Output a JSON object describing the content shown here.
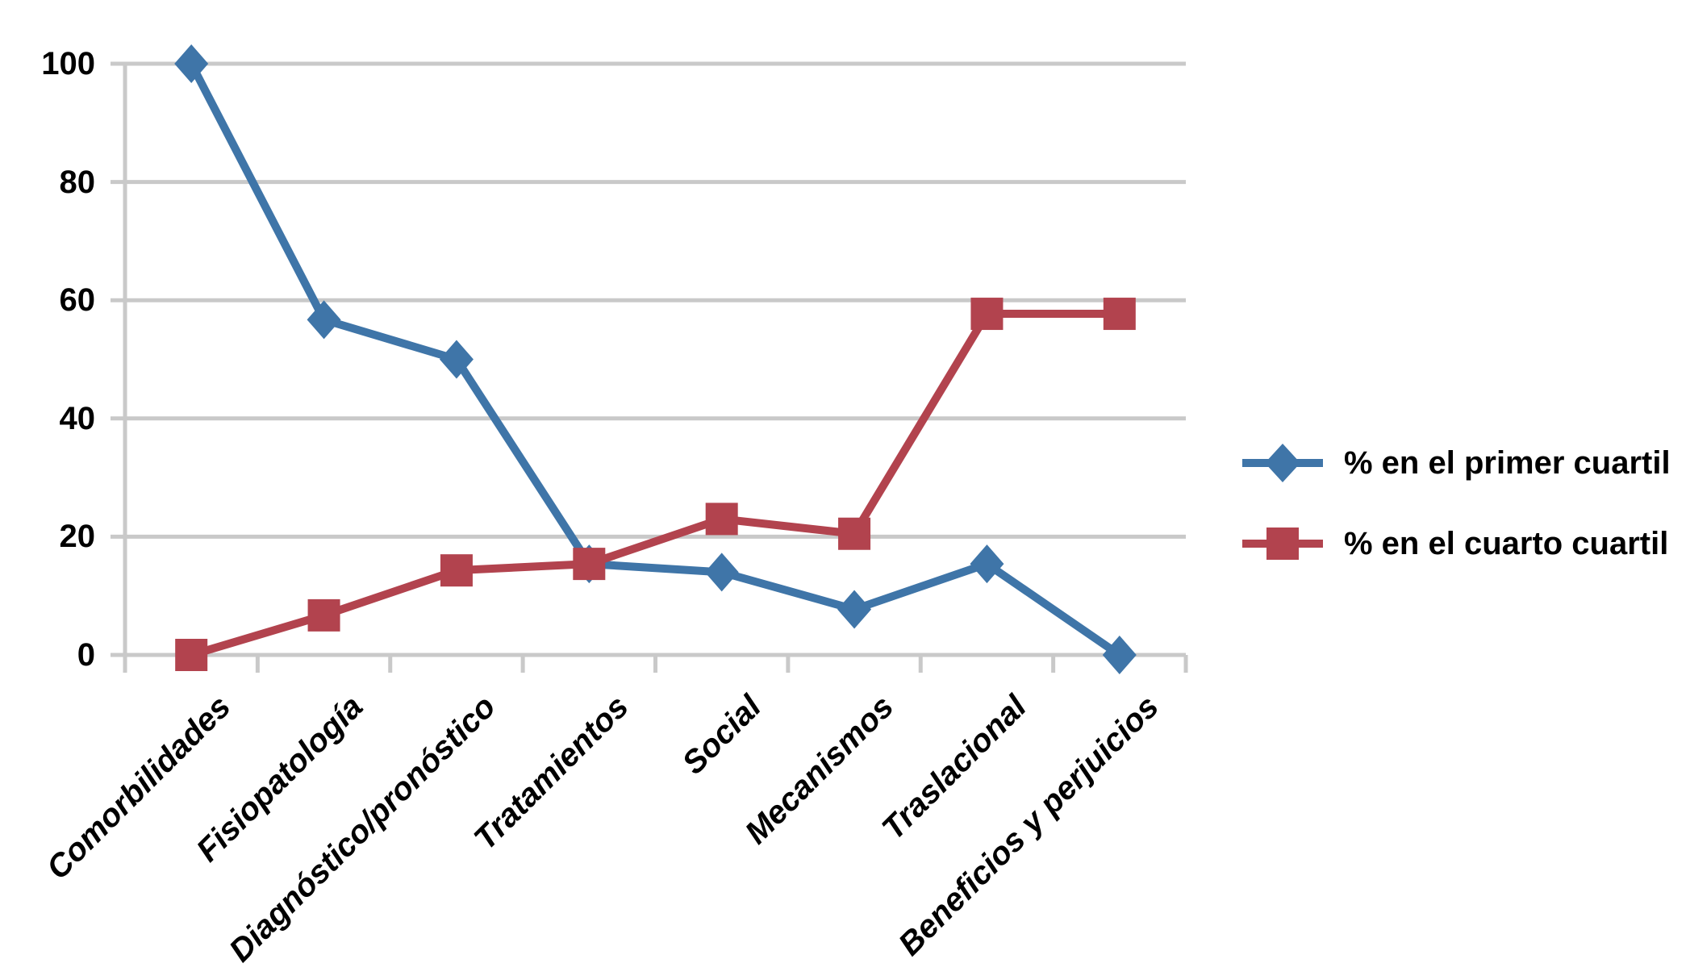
{
  "chart_data": {
    "type": "line",
    "categories": [
      "Comorbilidades",
      "Fisiopatología",
      "Diagnóstico/pronóstico",
      "Tratamientos",
      "Social",
      "Mecanismos",
      "Traslacional",
      "Beneficios y perjuicios"
    ],
    "series": [
      {
        "name": "% en el primer cuartil",
        "marker": "diamond",
        "color": "#3F75A8",
        "values": [
          100,
          56.7,
          50,
          15.4,
          14,
          7.7,
          15.4,
          0
        ]
      },
      {
        "name": "% en el cuarto cuartil",
        "marker": "square",
        "color": "#B2434E",
        "values": [
          0,
          6.7,
          14.3,
          15.4,
          23,
          20.5,
          57.7,
          57.7
        ]
      }
    ],
    "title": "",
    "xlabel": "",
    "ylabel": "",
    "ylim": [
      0,
      100
    ],
    "yticks": [
      0,
      20,
      40,
      60,
      80,
      100
    ],
    "grid": true,
    "gridline_color": "#C9C9C9",
    "legend_position": "right"
  }
}
